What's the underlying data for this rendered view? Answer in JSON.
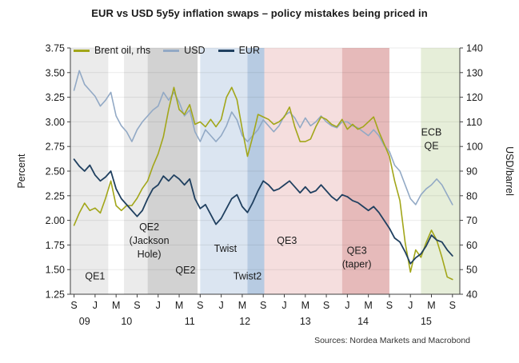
{
  "title": "EUR vs USD 5y5y inflation swaps – policy mistakes being priced in",
  "sources": "Sources: Nordea Markets and Macrobond",
  "chart_data": {
    "type": "line",
    "x_unit": "months since 2009-09 (monthly values, 2009-09 through 2015-09)",
    "x_domain": [
      -0.7,
      73.4
    ],
    "left_axis": {
      "label": "Percent",
      "min": 1.25,
      "max": 3.75,
      "step": 0.25
    },
    "right_axis": {
      "label": "USD/barrel",
      "min": 40,
      "max": 140,
      "step": 10
    },
    "grid": "horizontal, light gray",
    "legend_position": "top-left inside plot",
    "x_ticks": [
      {
        "m": 0,
        "label": "S"
      },
      {
        "m": 4,
        "label": "J"
      },
      {
        "m": 8,
        "label": "M"
      },
      {
        "m": 12,
        "label": "S"
      },
      {
        "m": 16,
        "label": "J"
      },
      {
        "m": 20,
        "label": "M"
      },
      {
        "m": 24,
        "label": "S"
      },
      {
        "m": 28,
        "label": "J"
      },
      {
        "m": 32,
        "label": "M"
      },
      {
        "m": 36,
        "label": "S"
      },
      {
        "m": 40,
        "label": "J"
      },
      {
        "m": 44,
        "label": "M"
      },
      {
        "m": 48,
        "label": "S"
      },
      {
        "m": 52,
        "label": "J"
      },
      {
        "m": 56,
        "label": "M"
      },
      {
        "m": 60,
        "label": "S"
      },
      {
        "m": 64,
        "label": "J"
      },
      {
        "m": 68,
        "label": "M"
      },
      {
        "m": 72,
        "label": "S"
      }
    ],
    "year_labels": [
      {
        "m": 2,
        "label": "09"
      },
      {
        "m": 10,
        "label": "10"
      },
      {
        "m": 22,
        "label": "11"
      },
      {
        "m": 32.5,
        "label": "12"
      },
      {
        "m": 44,
        "label": "13"
      },
      {
        "m": 55,
        "label": "14"
      },
      {
        "m": 67,
        "label": "15"
      }
    ],
    "series": [
      {
        "id": "brent",
        "name": "Brent oil, rhs",
        "axis": "right",
        "color": "#a2a619",
        "width": 1.6,
        "values": [
          68,
          73,
          77,
          74,
          75,
          73,
          79,
          86,
          76,
          74,
          76,
          76,
          79,
          83,
          86,
          92,
          97,
          104,
          115,
          124,
          115,
          113,
          117,
          109,
          110,
          108,
          111,
          108,
          111,
          120,
          124,
          119,
          107,
          96,
          104,
          113,
          112,
          111,
          109,
          110,
          112,
          116,
          108,
          102,
          102,
          103,
          108,
          112,
          111,
          109,
          108,
          111,
          107,
          109,
          107,
          108,
          110,
          112,
          106,
          101,
          96,
          86,
          78,
          61,
          49,
          58,
          55,
          61,
          66,
          62,
          55,
          47,
          46
        ]
      },
      {
        "id": "usd",
        "name": "USD",
        "axis": "left",
        "color": "#92a9c5",
        "width": 1.6,
        "values": [
          3.32,
          3.52,
          3.38,
          3.32,
          3.26,
          3.16,
          3.22,
          3.3,
          3.06,
          2.96,
          2.9,
          2.8,
          2.92,
          3.0,
          3.06,
          3.12,
          3.16,
          3.3,
          3.22,
          3.3,
          3.2,
          3.06,
          3.12,
          2.9,
          2.8,
          2.92,
          2.86,
          2.8,
          2.86,
          2.96,
          3.1,
          3.02,
          2.86,
          2.8,
          2.86,
          2.92,
          3.02,
          2.96,
          2.9,
          2.96,
          3.06,
          3.1,
          3.04,
          2.94,
          3.04,
          2.96,
          3.0,
          3.06,
          3.0,
          2.96,
          2.94,
          3.0,
          3.0,
          2.96,
          2.94,
          2.9,
          2.86,
          2.92,
          2.86,
          2.76,
          2.7,
          2.56,
          2.5,
          2.36,
          2.22,
          2.16,
          2.26,
          2.32,
          2.36,
          2.42,
          2.36,
          2.26,
          2.16
        ]
      },
      {
        "id": "eur",
        "name": "EUR",
        "axis": "left",
        "color": "#204060",
        "width": 1.8,
        "values": [
          2.62,
          2.55,
          2.5,
          2.56,
          2.46,
          2.4,
          2.44,
          2.5,
          2.32,
          2.22,
          2.16,
          2.1,
          2.04,
          2.1,
          2.22,
          2.32,
          2.36,
          2.45,
          2.4,
          2.46,
          2.42,
          2.36,
          2.42,
          2.22,
          2.12,
          2.16,
          2.06,
          1.96,
          2.02,
          2.12,
          2.22,
          2.26,
          2.14,
          2.08,
          2.18,
          2.3,
          2.4,
          2.36,
          2.3,
          2.32,
          2.36,
          2.4,
          2.34,
          2.28,
          2.34,
          2.28,
          2.3,
          2.36,
          2.3,
          2.24,
          2.2,
          2.26,
          2.24,
          2.2,
          2.18,
          2.14,
          2.1,
          2.14,
          2.08,
          2.0,
          1.92,
          1.82,
          1.78,
          1.68,
          1.56,
          1.62,
          1.66,
          1.74,
          1.85,
          1.8,
          1.78,
          1.7,
          1.64
        ]
      }
    ],
    "bands": [
      {
        "id": "qe1",
        "start": -0.7,
        "end": 6.5,
        "color": "#ebebeb",
        "label": {
          "lines": [
            "QE1"
          ],
          "x_m": 4,
          "y_pct": 1.4
        }
      },
      {
        "id": "qe2-jackson-hole",
        "start": 9.5,
        "end": 14,
        "color": "#ebebeb",
        "label": {
          "lines": [
            "QE2",
            "(Jackson",
            "Hole)"
          ],
          "x_m": 14.3,
          "y_pct": 1.9
        }
      },
      {
        "id": "qe2",
        "start": 14,
        "end": 23.5,
        "color": "#d2d2d2",
        "label": {
          "lines": [
            "QE2"
          ],
          "x_m": 21.2,
          "y_pct": 1.46
        }
      },
      {
        "id": "twist",
        "start": 24,
        "end": 33,
        "color": "#dbe5f1",
        "label": {
          "lines": [
            "Twist"
          ],
          "x_m": 28.8,
          "y_pct": 1.68
        }
      },
      {
        "id": "twist2",
        "start": 33,
        "end": 36.2,
        "color": "#b7cbe2",
        "label": {
          "lines": [
            "Twist2"
          ],
          "x_m": 33.0,
          "y_pct": 1.4
        }
      },
      {
        "id": "qe3",
        "start": 36.2,
        "end": 51,
        "color": "#f5dede",
        "label": {
          "lines": [
            "QE3"
          ],
          "x_m": 40.5,
          "y_pct": 1.76
        }
      },
      {
        "id": "qe3-taper",
        "start": 51,
        "end": 60,
        "color": "#e6baba",
        "label": {
          "lines": [
            "QE3",
            "(taper)"
          ],
          "x_m": 53.8,
          "y_pct": 1.66
        }
      },
      {
        "id": "ecb-qe",
        "start": 66,
        "end": 73.4,
        "color": "#e6eed9",
        "label": {
          "lines": [
            "ECB",
            "QE"
          ],
          "x_m": 68,
          "y_pct": 2.86
        }
      }
    ]
  }
}
